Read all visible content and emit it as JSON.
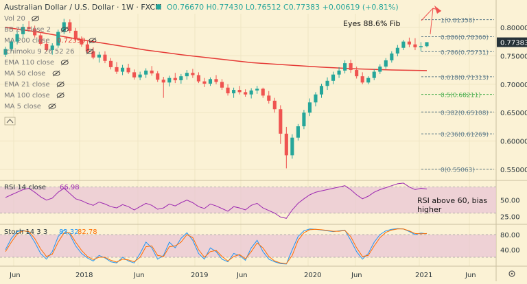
{
  "header": {
    "symbol": "Australian Dollar / U.S. Dollar · 1W · FXCM",
    "ohlc": "O0.76670 H0.77430 L0.76512 C0.77383 +0.00619 (+0.81%)"
  },
  "indicators": [
    {
      "label": "Vol 20"
    },
    {
      "label": "BB 20 close 2"
    },
    {
      "label": "MA 200 close",
      "value": "0.72390"
    },
    {
      "label": "Ichimoku 9 26 52 26"
    },
    {
      "label": "EMA 110 close"
    },
    {
      "label": "MA 50 close"
    },
    {
      "label": "EMA 21 close"
    },
    {
      "label": "MA 100 close"
    },
    {
      "label": "MA 5 close"
    }
  ],
  "colors": {
    "background": "#fbf2d5",
    "up": "#26a69a",
    "down": "#ef5350",
    "ma200": "#e53935",
    "rsi": "#9c27b0",
    "stoch_k": "#2196f3",
    "stoch_d": "#ff6d00",
    "osc_band": "#e9c6d4",
    "fib": "#607d8b",
    "fib_mid": "#4caf50",
    "price_tag": "#263238"
  },
  "chart_data": {
    "type": "candlestick",
    "x_labels": [
      "Jun",
      "2018",
      "Jun",
      "2019",
      "Jun",
      "2020",
      "Jun",
      "2021",
      "Jun"
    ],
    "price_axis": [
      "0.80000",
      "0.75000",
      "0.70000",
      "0.65000",
      "0.60000",
      "0.55000"
    ],
    "price_range": [
      0.532,
      0.824
    ],
    "last_price": "0.77383",
    "last_price_value": 0.77383,
    "candles": [
      [
        0.752,
        0.766,
        0.748,
        0.762
      ],
      [
        0.762,
        0.778,
        0.758,
        0.775
      ],
      [
        0.775,
        0.792,
        0.77,
        0.788
      ],
      [
        0.788,
        0.806,
        0.781,
        0.801
      ],
      [
        0.801,
        0.811,
        0.793,
        0.797
      ],
      [
        0.797,
        0.803,
        0.782,
        0.786
      ],
      [
        0.786,
        0.79,
        0.768,
        0.771
      ],
      [
        0.771,
        0.779,
        0.757,
        0.76
      ],
      [
        0.76,
        0.772,
        0.752,
        0.768
      ],
      [
        0.768,
        0.796,
        0.764,
        0.792
      ],
      [
        0.792,
        0.815,
        0.788,
        0.809
      ],
      [
        0.809,
        0.814,
        0.79,
        0.794
      ],
      [
        0.794,
        0.799,
        0.775,
        0.779
      ],
      [
        0.779,
        0.784,
        0.766,
        0.77
      ],
      [
        0.77,
        0.776,
        0.754,
        0.758
      ],
      [
        0.758,
        0.765,
        0.744,
        0.747
      ],
      [
        0.747,
        0.757,
        0.738,
        0.752
      ],
      [
        0.752,
        0.758,
        0.737,
        0.741
      ],
      [
        0.741,
        0.746,
        0.726,
        0.73
      ],
      [
        0.73,
        0.739,
        0.718,
        0.722
      ],
      [
        0.722,
        0.734,
        0.716,
        0.729
      ],
      [
        0.729,
        0.736,
        0.718,
        0.721
      ],
      [
        0.721,
        0.726,
        0.708,
        0.712
      ],
      [
        0.712,
        0.722,
        0.707,
        0.717
      ],
      [
        0.717,
        0.728,
        0.711,
        0.724
      ],
      [
        0.724,
        0.732,
        0.715,
        0.719
      ],
      [
        0.719,
        0.723,
        0.704,
        0.708
      ],
      [
        0.708,
        0.713,
        0.676,
        0.703
      ],
      [
        0.703,
        0.715,
        0.696,
        0.711
      ],
      [
        0.711,
        0.72,
        0.702,
        0.707
      ],
      [
        0.707,
        0.718,
        0.701,
        0.714
      ],
      [
        0.714,
        0.725,
        0.708,
        0.72
      ],
      [
        0.72,
        0.727,
        0.711,
        0.716
      ],
      [
        0.716,
        0.721,
        0.702,
        0.705
      ],
      [
        0.705,
        0.711,
        0.695,
        0.701
      ],
      [
        0.701,
        0.712,
        0.697,
        0.709
      ],
      [
        0.709,
        0.716,
        0.7,
        0.704
      ],
      [
        0.704,
        0.709,
        0.69,
        0.694
      ],
      [
        0.694,
        0.7,
        0.68,
        0.684
      ],
      [
        0.684,
        0.694,
        0.676,
        0.69
      ],
      [
        0.69,
        0.697,
        0.682,
        0.686
      ],
      [
        0.686,
        0.691,
        0.678,
        0.682
      ],
      [
        0.682,
        0.693,
        0.675,
        0.689
      ],
      [
        0.689,
        0.697,
        0.683,
        0.692
      ],
      [
        0.692,
        0.694,
        0.676,
        0.68
      ],
      [
        0.68,
        0.688,
        0.666,
        0.671
      ],
      [
        0.671,
        0.676,
        0.65,
        0.656
      ],
      [
        0.656,
        0.663,
        0.595,
        0.613
      ],
      [
        0.613,
        0.625,
        0.552,
        0.575
      ],
      [
        0.575,
        0.612,
        0.569,
        0.606
      ],
      [
        0.606,
        0.63,
        0.601,
        0.626
      ],
      [
        0.626,
        0.655,
        0.621,
        0.65
      ],
      [
        0.65,
        0.675,
        0.644,
        0.668
      ],
      [
        0.668,
        0.686,
        0.661,
        0.682
      ],
      [
        0.682,
        0.701,
        0.676,
        0.697
      ],
      [
        0.697,
        0.712,
        0.69,
        0.706
      ],
      [
        0.706,
        0.722,
        0.7,
        0.717
      ],
      [
        0.717,
        0.73,
        0.711,
        0.724
      ],
      [
        0.724,
        0.742,
        0.719,
        0.737
      ],
      [
        0.737,
        0.743,
        0.72,
        0.725
      ],
      [
        0.725,
        0.731,
        0.71,
        0.714
      ],
      [
        0.714,
        0.721,
        0.7,
        0.703
      ],
      [
        0.703,
        0.714,
        0.7,
        0.711
      ],
      [
        0.711,
        0.727,
        0.707,
        0.722
      ],
      [
        0.722,
        0.735,
        0.718,
        0.731
      ],
      [
        0.731,
        0.746,
        0.727,
        0.742
      ],
      [
        0.742,
        0.758,
        0.738,
        0.754
      ],
      [
        0.754,
        0.769,
        0.749,
        0.764
      ],
      [
        0.764,
        0.778,
        0.76,
        0.775
      ],
      [
        0.775,
        0.782,
        0.765,
        0.77
      ],
      [
        0.77,
        0.781,
        0.76,
        0.765
      ],
      [
        0.765,
        0.774,
        0.758,
        0.767
      ],
      [
        0.767,
        0.774,
        0.765,
        0.774
      ]
    ],
    "ma200": [
      [
        0,
        0.8
      ],
      [
        10,
        0.791
      ],
      [
        20,
        0.78
      ],
      [
        30,
        0.77
      ],
      [
        40,
        0.76
      ],
      [
        50,
        0.752
      ],
      [
        60,
        0.745
      ],
      [
        70,
        0.738
      ],
      [
        80,
        0.734
      ],
      [
        90,
        0.73
      ],
      [
        100,
        0.727
      ],
      [
        110,
        0.725
      ],
      [
        120,
        0.724
      ]
    ],
    "fib_levels": [
      {
        "label": "1(0.81358)",
        "value": 0.81358
      },
      {
        "label": "0.886(0.78360)",
        "value": 0.7836
      },
      {
        "label": "0.786(0.75731)",
        "value": 0.75731
      },
      {
        "label": "0.618(0.71313)",
        "value": 0.71313
      },
      {
        "label": "0.5(0.68211)",
        "value": 0.68211
      },
      {
        "label": "0.382(0.65108)",
        "value": 0.65108
      },
      {
        "label": "0.236(0.61269)",
        "value": 0.61269
      },
      {
        "label": "0(0.55063)",
        "value": 0.55063
      }
    ],
    "annotations": {
      "fib_note": "Eyes 88.6% Fib",
      "rsi_note_1": "RSI above 60, bias",
      "rsi_note_2": "higher"
    },
    "rsi": {
      "label": "RSI 14 close",
      "value": "66.98",
      "axis": [
        "50.00",
        "25.00"
      ],
      "range": [
        15,
        78
      ],
      "band": [
        30,
        70
      ],
      "values": [
        54,
        58,
        62,
        66,
        68,
        62,
        55,
        50,
        53,
        62,
        68,
        60,
        52,
        49,
        45,
        42,
        47,
        44,
        40,
        38,
        43,
        40,
        35,
        40,
        45,
        42,
        36,
        38,
        44,
        41,
        46,
        50,
        46,
        40,
        37,
        44,
        41,
        37,
        33,
        40,
        38,
        35,
        42,
        45,
        38,
        34,
        30,
        24,
        22,
        35,
        45,
        52,
        58,
        62,
        64,
        66,
        68,
        70,
        72,
        66,
        58,
        52,
        56,
        62,
        66,
        69,
        72,
        75,
        76,
        70,
        66,
        68,
        67
      ]
    },
    "stoch": {
      "label": "Stoch 14 3 3",
      "k_value": "82.32",
      "d_value": "82.78",
      "axis": [
        "80.00",
        "40.00"
      ],
      "range": [
        0,
        100
      ],
      "band": [
        20,
        80
      ],
      "k": [
        40,
        70,
        88,
        92,
        85,
        60,
        30,
        15,
        35,
        75,
        92,
        80,
        50,
        30,
        18,
        10,
        25,
        18,
        8,
        5,
        20,
        10,
        5,
        30,
        60,
        45,
        15,
        25,
        60,
        45,
        70,
        85,
        65,
        30,
        15,
        45,
        35,
        15,
        8,
        30,
        25,
        12,
        45,
        65,
        35,
        15,
        8,
        3,
        2,
        40,
        75,
        90,
        95,
        94,
        92,
        90,
        88,
        90,
        92,
        65,
        35,
        15,
        30,
        60,
        80,
        90,
        94,
        96,
        95,
        88,
        80,
        84,
        82
      ],
      "d": [
        35,
        60,
        82,
        90,
        88,
        70,
        42,
        22,
        28,
        60,
        85,
        85,
        60,
        38,
        22,
        14,
        20,
        20,
        12,
        7,
        15,
        13,
        8,
        20,
        48,
        50,
        25,
        22,
        48,
        50,
        60,
        80,
        72,
        40,
        20,
        35,
        38,
        22,
        10,
        22,
        27,
        16,
        35,
        58,
        45,
        22,
        10,
        5,
        3,
        25,
        65,
        85,
        93,
        94,
        93,
        91,
        89,
        89,
        91,
        75,
        45,
        22,
        25,
        50,
        72,
        86,
        92,
        95,
        95,
        90,
        83,
        82,
        83
      ]
    }
  }
}
